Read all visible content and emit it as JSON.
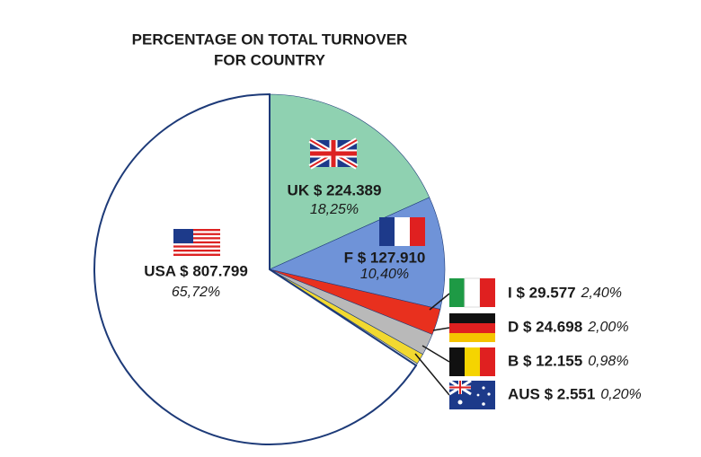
{
  "chart_data": {
    "type": "pie",
    "title": [
      "PERCENTAGE ON TOTAL TURNOVER",
      "FOR COUNTRY"
    ],
    "categories": [
      "UK $ 224.389",
      "F $ 127.910",
      "I $ 29.577",
      "D $ 24.698",
      "B $ 12.155",
      "AUS $ 2.551",
      "USA $ 807.799"
    ],
    "values": [
      18.25,
      10.4,
      2.4,
      2.0,
      0.98,
      0.2,
      65.72
    ],
    "value_labels": [
      "18,25%",
      "10,40%",
      "2,40%",
      "2,00%",
      "0,98%",
      "0,20%",
      "65,72%"
    ],
    "colors": [
      "#8fd1b1",
      "#6f93d8",
      "#e8301e",
      "#b9b9b9",
      "#f2d930",
      "#f3f0d8",
      "#ffffff"
    ],
    "edge_color": "#1d3a78"
  }
}
